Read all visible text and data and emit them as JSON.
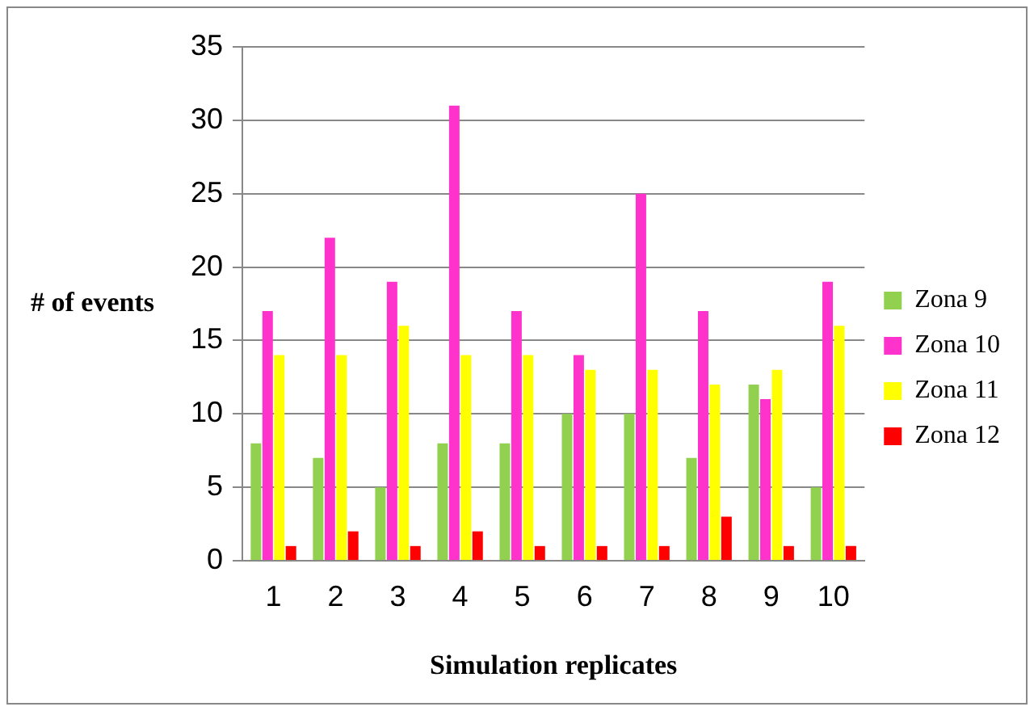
{
  "chart_data": {
    "type": "bar",
    "xlabel": "Simulation replicates",
    "ylabel": "# of events",
    "categories": [
      "1",
      "2",
      "3",
      "4",
      "5",
      "6",
      "7",
      "8",
      "9",
      "10"
    ],
    "series": [
      {
        "name": "Zona 9",
        "color": "#92d050",
        "values": [
          8,
          7,
          5,
          8,
          8,
          10,
          10,
          7,
          12,
          5
        ]
      },
      {
        "name": "Zona 10",
        "color": "#ff33cc",
        "values": [
          17,
          22,
          19,
          31,
          17,
          14,
          25,
          17,
          11,
          19
        ]
      },
      {
        "name": "Zona 11",
        "color": "#ffff00",
        "values": [
          14,
          14,
          16,
          14,
          14,
          13,
          13,
          12,
          13,
          16
        ]
      },
      {
        "name": "Zona 12",
        "color": "#ff0000",
        "values": [
          1,
          2,
          1,
          2,
          1,
          1,
          1,
          3,
          1,
          1
        ]
      }
    ],
    "ylim": [
      0,
      35
    ],
    "yticks": [
      0,
      5,
      10,
      15,
      20,
      25,
      30,
      35
    ],
    "grid": "y",
    "legend": "right"
  }
}
